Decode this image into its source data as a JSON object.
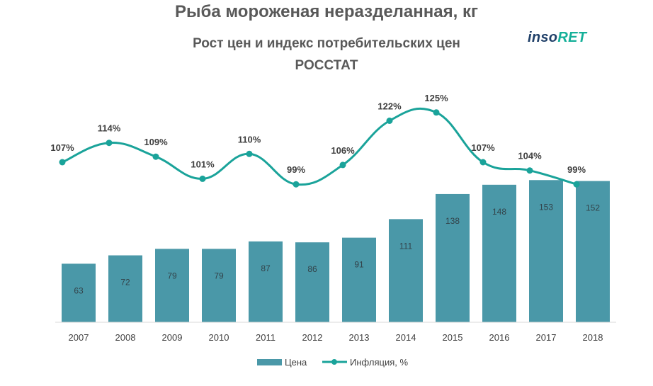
{
  "header": {
    "title": "Рыба мороженая неразделанная, кг",
    "subtitle1": "Рост цен и индекс потребительских цен",
    "subtitle2": "РОССТАТ",
    "logo_part1": "inso",
    "logo_part2": "RET"
  },
  "colors": {
    "bar": "#4a98a8",
    "line": "#1aa39a",
    "text": "#595959"
  },
  "chart_data": {
    "type": "bar+line",
    "categories": [
      "2007",
      "2008",
      "2009",
      "2010",
      "2011",
      "2012",
      "2013",
      "2014",
      "2015",
      "2016",
      "2017",
      "2018"
    ],
    "series": [
      {
        "name": "Цена",
        "type": "bar",
        "values": [
          63,
          72,
          79,
          79,
          87,
          86,
          91,
          111,
          138,
          148,
          153,
          152
        ]
      },
      {
        "name": "Инфляция, %",
        "type": "line",
        "values": [
          107,
          114,
          109,
          101,
          110,
          99,
          106,
          122,
          125,
          107,
          104,
          99
        ],
        "labels": [
          "107%",
          "114%",
          "109%",
          "101%",
          "110%",
          "99%",
          "106%",
          "122%",
          "125%",
          "107%",
          "104%",
          "99%"
        ]
      }
    ],
    "legend": {
      "position": "bottom",
      "items": [
        "Цена",
        "Инфляция, %"
      ]
    },
    "grid": false
  }
}
